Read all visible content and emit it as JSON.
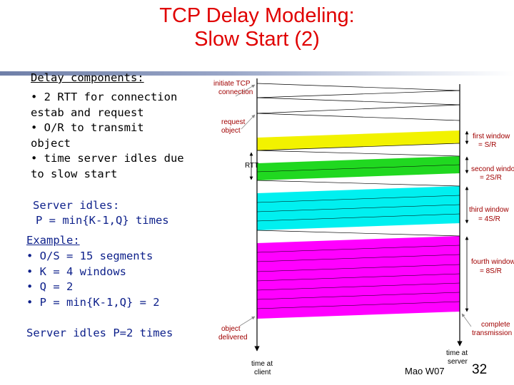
{
  "title": {
    "line1": "TCP Delay Modeling:",
    "line2": "Slow Start (2)"
  },
  "left_panel": {
    "delay_heading": "Delay components:",
    "delay_items": [
      "• 2 RTT for connection",
      "estab and request",
      "• O/R to transmit",
      "object",
      "• time server idles due",
      "to slow start"
    ],
    "server_idles_heading": "Server idles:",
    "server_idles_formula": "P = min{K-1,Q} times",
    "example_heading": "Example:",
    "example_items": [
      "• O/S  = 15 segments",
      "• K = 4 windows",
      "• Q = 2",
      "• P = min{K-1,Q} = 2"
    ],
    "conclusion": "Server idles P=2 times"
  },
  "diagram": {
    "labels": {
      "initiate_line1": "initiate TCP",
      "initiate_line2": "connection",
      "request_line1": "request",
      "request_line2": "object",
      "rtt": "RTT",
      "first_window_line1": "first window",
      "first_window_line2": "= S/R",
      "second_window_line1": "second window",
      "second_window_line2": "= 2S/R",
      "third_window_line1": "third window",
      "third_window_line2": "= 4S/R",
      "fourth_window_line1": "fourth window",
      "fourth_window_line2": "= 8S/R",
      "complete_line1": "complete",
      "complete_line2": "transmission",
      "object_delivered_line1": "object",
      "object_delivered_line2": "delivered",
      "time_client_line1": "time at",
      "time_client_line2": "client",
      "time_server_line1": "time at",
      "time_server_line2": "server"
    },
    "colors": {
      "first_window": "#f2f200",
      "second_window": "#20d820",
      "third_window": "#00f0f0",
      "fourth_window": "#ff00ff",
      "labels": "#a00000"
    }
  },
  "footer": {
    "author": "Mao W07",
    "page": "32"
  }
}
